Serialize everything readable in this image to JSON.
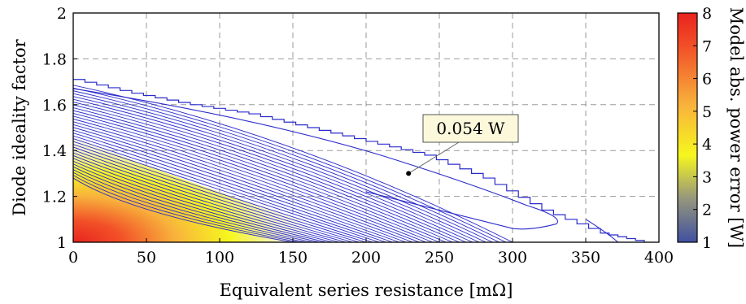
{
  "chart_data": {
    "type": "contour",
    "title": "",
    "xlabel": "Equivalent series resistance [mΩ]",
    "ylabel": "Diode ideality factor",
    "colorbar_label": "Model abs. power error [W]",
    "xlim": [
      0,
      400
    ],
    "ylim": [
      1,
      2
    ],
    "xticks": [
      "0",
      "50",
      "100",
      "150",
      "200",
      "250",
      "300",
      "350",
      "400"
    ],
    "yticks": [
      "1",
      "1.2",
      "1.4",
      "1.6",
      "1.8",
      "2"
    ],
    "colorbar_range": [
      1,
      8
    ],
    "colorbar_ticks": [
      "1",
      "2",
      "3",
      "4",
      "5",
      "6",
      "7",
      "8"
    ],
    "colormap": [
      "#4050a0",
      "#9a9a7a",
      "#f6f61e",
      "#f8b23c",
      "#f25128",
      "#e8231e"
    ],
    "grid": true,
    "grid_style": "dashed",
    "contour_line_color": "#2b2bcc",
    "outer_contour_boundary": [
      [
        0,
        1.71
      ],
      [
        40,
        1.65
      ],
      [
        80,
        1.6
      ],
      [
        120,
        1.56
      ],
      [
        160,
        1.5
      ],
      [
        200,
        1.44
      ],
      [
        240,
        1.38
      ],
      [
        280,
        1.28
      ],
      [
        320,
        1.14
      ],
      [
        360,
        1.04
      ],
      [
        390,
        1.0
      ]
    ],
    "annotation": {
      "text": "0.054 W",
      "point": [
        229,
        1.3
      ]
    }
  }
}
